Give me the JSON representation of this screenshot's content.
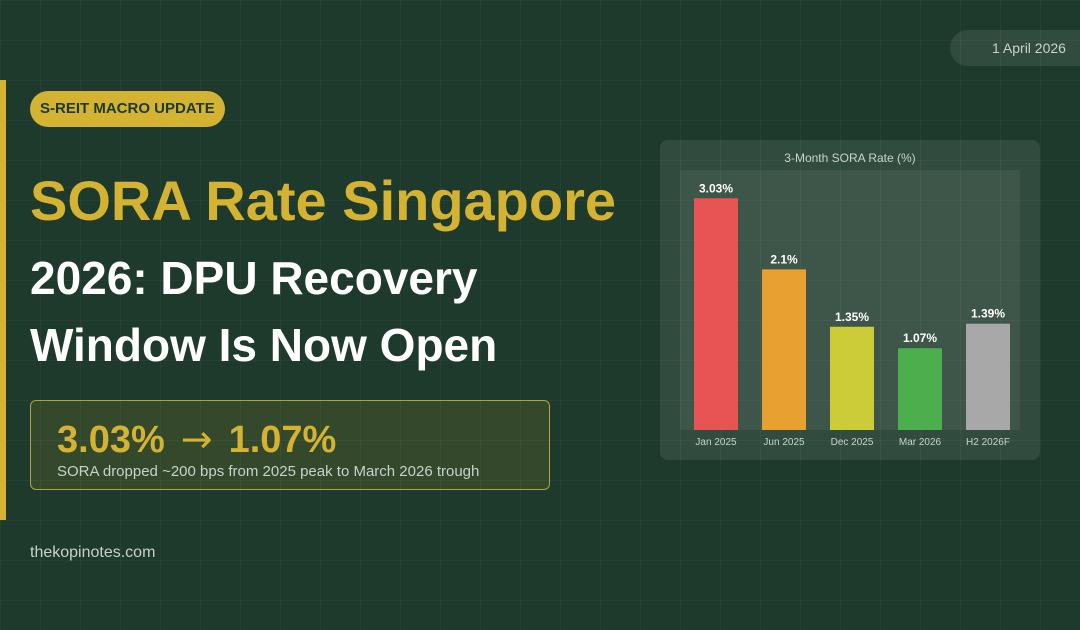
{
  "date": "1 April 2026",
  "badge": "S-REIT MACRO UPDATE",
  "title": {
    "line1": "SORA Rate Singapore",
    "line2": "2026: DPU Recovery",
    "line3": "Window Is Now Open"
  },
  "stat": {
    "from": "3.03%",
    "arrow": "→",
    "to": "1.07%",
    "caption": "SORA dropped ~200 bps from 2025 peak to March 2026 trough"
  },
  "site": "thekopinotes.com",
  "colors": {
    "accent": "#d4b232",
    "background": "#1e3a2c"
  },
  "chart_data": {
    "type": "bar",
    "title": "3-Month SORA Rate (%)",
    "categories": [
      "Jan 2025",
      "Jun 2025",
      "Dec 2025",
      "Mar 2026",
      "H2 2026F"
    ],
    "values": [
      3.03,
      2.1,
      1.35,
      1.07,
      1.39
    ],
    "data_labels": [
      "3.03%",
      "2.1%",
      "1.35%",
      "1.07%",
      "1.39%"
    ],
    "colors": [
      "#e85454",
      "#e8a030",
      "#cccc38",
      "#4cae4c",
      "#a8a8a8"
    ],
    "ylim": [
      0,
      3.4
    ],
    "grid": false,
    "xlabel": "",
    "ylabel": ""
  }
}
